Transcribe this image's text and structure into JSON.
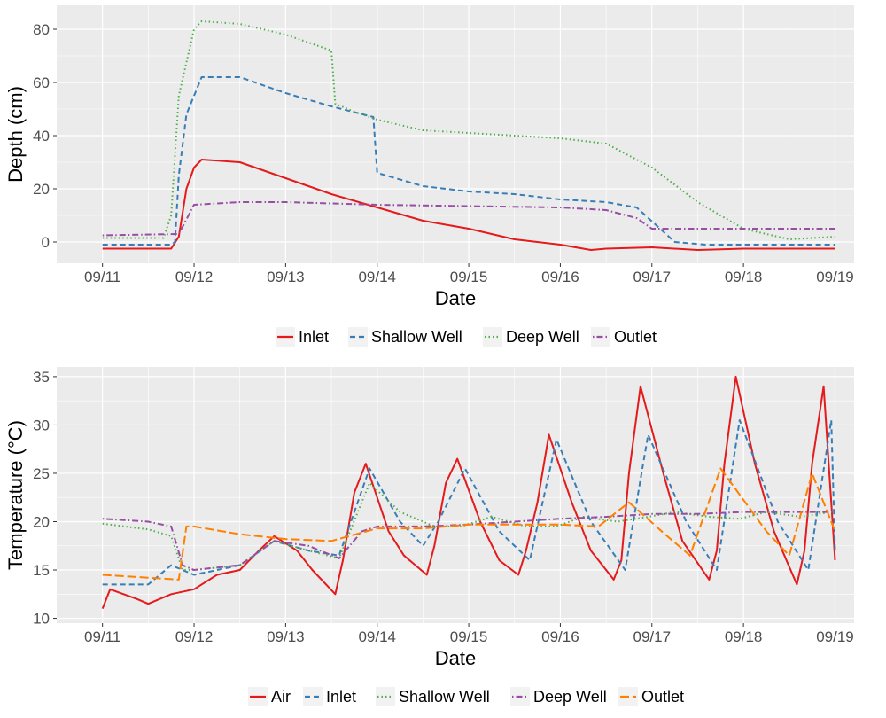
{
  "chart_data": [
    {
      "type": "line",
      "title": "",
      "xlabel": "Date",
      "ylabel": "Depth (cm)",
      "x_tick_labels": [
        "09/11",
        "09/12",
        "09/13",
        "09/14",
        "09/15",
        "09/16",
        "09/17",
        "09/18",
        "09/19"
      ],
      "y_ticks": [
        0,
        20,
        40,
        60,
        80
      ],
      "ylim": [
        -8,
        89
      ],
      "xlim": [
        "09/10 12:00",
        "09/19 05:00"
      ],
      "grid": true,
      "legend_position": "bottom",
      "series": [
        {
          "name": "Inlet",
          "color": "#e41a1c",
          "dash": "solid",
          "x": [
            "09/11 00:00",
            "09/11 18:00",
            "09/11 20:00",
            "09/11 22:00",
            "09/12 00:00",
            "09/12 02:00",
            "09/12 12:00",
            "09/13 00:00",
            "09/13 12:00",
            "09/14 00:00",
            "09/14 12:00",
            "09/15 00:00",
            "09/15 12:00",
            "09/16 00:00",
            "09/16 08:00",
            "09/16 12:00",
            "09/17 00:00",
            "09/17 12:00",
            "09/18 00:00",
            "09/18 12:00",
            "09/19 00:00"
          ],
          "y": [
            -2.5,
            -2.5,
            2,
            20,
            28,
            31,
            30,
            24,
            18,
            13,
            8,
            5,
            1,
            -1,
            -3,
            -2.5,
            -2,
            -3,
            -2.5,
            -2.5,
            -2.5
          ]
        },
        {
          "name": "Shallow Well",
          "color": "#377eb8",
          "dash": "dashed",
          "x": [
            "09/11 00:00",
            "09/11 18:00",
            "09/11 19:00",
            "09/11 20:00",
            "09/11 22:00",
            "09/12 02:00",
            "09/12 12:00",
            "09/13 00:00",
            "09/13 12:00",
            "09/13 23:00",
            "09/14 00:00",
            "09/14 12:00",
            "09/15 00:00",
            "09/15 12:00",
            "09/16 00:00",
            "09/16 12:00",
            "09/16 20:00",
            "09/17 06:00",
            "09/17 14:00",
            "09/18 00:00",
            "09/18 12:00",
            "09/19 00:00"
          ],
          "y": [
            -1,
            -1,
            0,
            25,
            48,
            62,
            62,
            56,
            51,
            47,
            26,
            21,
            19,
            18,
            16,
            15,
            13,
            0,
            -1,
            -1,
            -1,
            -1
          ]
        },
        {
          "name": "Deep Well",
          "color": "#4daf4a",
          "dash": "dotted",
          "x": [
            "09/11 00:00",
            "09/11 16:00",
            "09/11 18:00",
            "09/11 20:00",
            "09/12 00:00",
            "09/12 02:00",
            "09/12 12:00",
            "09/13 00:00",
            "09/13 12:00",
            "09/13 13:00",
            "09/13 18:00",
            "09/14 00:00",
            "09/14 12:00",
            "09/15 00:00",
            "09/15 12:00",
            "09/16 00:00",
            "09/16 12:00",
            "09/17 00:00",
            "09/17 12:00",
            "09/18 00:00",
            "09/18 12:00",
            "09/19 00:00"
          ],
          "y": [
            1.5,
            1.5,
            10,
            55,
            80,
            83,
            82,
            78,
            72,
            52,
            49,
            46,
            42,
            41,
            40,
            39,
            37,
            28,
            15,
            5,
            1,
            2
          ]
        },
        {
          "name": "Outlet",
          "color": "#984ea3",
          "dash": "dotdash",
          "x": [
            "09/11 00:00",
            "09/11 20:00",
            "09/12 00:00",
            "09/12 12:00",
            "09/13 00:00",
            "09/13 12:00",
            "09/14 00:00",
            "09/15 00:00",
            "09/16 00:00",
            "09/16 12:00",
            "09/16 20:00",
            "09/17 00:00",
            "09/17 12:00",
            "09/18 00:00",
            "09/18 12:00",
            "09/19 00:00"
          ],
          "y": [
            2.5,
            3,
            14,
            15,
            15,
            14.5,
            14,
            13.5,
            13,
            12,
            9,
            5,
            5,
            5,
            5,
            5
          ]
        }
      ]
    },
    {
      "type": "line",
      "title": "",
      "xlabel": "Date",
      "ylabel": "Temperature (°C)",
      "x_tick_labels": [
        "09/11",
        "09/12",
        "09/13",
        "09/14",
        "09/15",
        "09/16",
        "09/17",
        "09/18",
        "09/19"
      ],
      "y_ticks": [
        10,
        15,
        20,
        25,
        30,
        35
      ],
      "ylim": [
        9.5,
        36
      ],
      "xlim": [
        "09/10 12:00",
        "09/19 05:00"
      ],
      "grid": true,
      "legend_position": "bottom",
      "series": [
        {
          "name": "Air",
          "color": "#e41a1c",
          "dash": "solid",
          "x": [
            "09/11 00:00",
            "09/11 02:00",
            "09/11 09:00",
            "09/11 12:00",
            "09/11 18:00",
            "09/12 00:00",
            "09/12 06:00",
            "09/12 12:00",
            "09/12 17:00",
            "09/12 21:00",
            "09/13 03:00",
            "09/13 07:00",
            "09/13 13:00",
            "09/13 15:00",
            "09/13 18:00",
            "09/13 21:00",
            "09/14 03:00",
            "09/14 07:00",
            "09/14 13:00",
            "09/14 15:00",
            "09/14 18:00",
            "09/14 21:00",
            "09/15 03:00",
            "09/15 08:00",
            "09/15 13:00",
            "09/15 15:00",
            "09/15 18:00",
            "09/15 21:00",
            "09/16 03:00",
            "09/16 08:00",
            "09/16 14:00",
            "09/16 16:00",
            "09/16 18:00",
            "09/16 21:00",
            "09/17 03:00",
            "09/17 08:00",
            "09/17 15:00",
            "09/17 17:00",
            "09/17 19:00",
            "09/17 22:00",
            "09/18 03:00",
            "09/18 08:00",
            "09/18 14:00",
            "09/18 16:00",
            "09/18 18:00",
            "09/18 21:00",
            "09/19 00:00"
          ],
          "y": [
            11,
            13,
            12,
            11.5,
            12.5,
            13,
            14.5,
            15,
            17,
            18.5,
            17,
            15,
            12.5,
            16,
            23,
            26,
            19,
            16.5,
            14.5,
            17.5,
            24,
            26.5,
            20,
            16,
            14.5,
            17,
            22,
            29,
            22,
            17,
            14,
            16,
            25,
            34,
            25,
            18,
            14,
            17,
            26,
            35,
            26,
            19,
            13.5,
            17,
            26,
            34,
            16
          ]
        },
        {
          "name": "Inlet",
          "color": "#377eb8",
          "dash": "dashed",
          "x": [
            "09/11 00:00",
            "09/11 12:00",
            "09/11 18:00",
            "09/12 00:00",
            "09/12 12:00",
            "09/12 21:00",
            "09/13 06:00",
            "09/13 14:00",
            "09/13 22:00",
            "09/14 06:00",
            "09/14 12:00",
            "09/14 16:00",
            "09/14 23:00",
            "09/15 08:00",
            "09/15 16:00",
            "09/15 23:00",
            "09/16 08:00",
            "09/16 17:00",
            "09/16 23:00",
            "09/17 09:00",
            "09/17 17:00",
            "09/17 23:00",
            "09/18 09:00",
            "09/18 17:00",
            "09/18 23:00",
            "09/19 00:00"
          ],
          "y": [
            13.5,
            13.5,
            15.5,
            14.5,
            15.5,
            18,
            17,
            16.5,
            25.5,
            20,
            17.5,
            20,
            25.5,
            19,
            16,
            28.5,
            20,
            15,
            29,
            20,
            15,
            30.5,
            20,
            15,
            30.5,
            17
          ]
        },
        {
          "name": "Shallow Well",
          "color": "#4daf4a",
          "dash": "dotted",
          "x": [
            "09/11 00:00",
            "09/11 12:00",
            "09/11 18:00",
            "09/11 21:00",
            "09/12 00:00",
            "09/12 12:00",
            "09/12 21:00",
            "09/13 06:00",
            "09/13 14:00",
            "09/13 22:00",
            "09/14 06:00",
            "09/14 15:00",
            "09/14 22:00",
            "09/15 06:00",
            "09/15 15:00",
            "09/15 23:00",
            "09/16 06:00",
            "09/16 15:00",
            "09/16 23:00",
            "09/17 06:00",
            "09/17 15:00",
            "09/17 23:00",
            "09/18 06:00",
            "09/18 15:00",
            "09/18 23:00",
            "09/19 00:00"
          ],
          "y": [
            19.8,
            19.2,
            18.5,
            15,
            15,
            15.5,
            18,
            17,
            16.2,
            24,
            21,
            19.5,
            19.5,
            20.5,
            19.5,
            19.5,
            20.5,
            20,
            20.5,
            21,
            20.5,
            20.3,
            21,
            20.5,
            21,
            21
          ]
        },
        {
          "name": "Deep Well",
          "color": "#984ea3",
          "dash": "dotdash",
          "x": [
            "09/11 00:00",
            "09/11 12:00",
            "09/11 18:00",
            "09/11 21:00",
            "09/12 00:00",
            "09/12 12:00",
            "09/12 21:00",
            "09/13 06:00",
            "09/13 14:00",
            "09/13 20:00",
            "09/14 00:00",
            "09/14 12:00",
            "09/15 00:00",
            "09/15 12:00",
            "09/16 00:00",
            "09/16 12:00",
            "09/17 00:00",
            "09/17 12:00",
            "09/18 00:00",
            "09/18 12:00",
            "09/19 00:00"
          ],
          "y": [
            20.3,
            20,
            19.5,
            15.5,
            15,
            15.5,
            18,
            17.5,
            16.2,
            19,
            19.5,
            19.5,
            19.7,
            20,
            20.3,
            20.5,
            20.8,
            20.8,
            21,
            21,
            21
          ]
        },
        {
          "name": "Outlet",
          "color": "#ff7f00",
          "dash": "longdash",
          "x": [
            "09/11 00:00",
            "09/11 12:00",
            "09/11 20:00",
            "09/11 22:00",
            "09/12 00:00",
            "09/12 12:00",
            "09/13 00:00",
            "09/13 12:00",
            "09/14 00:00",
            "09/14 12:00",
            "09/15 00:00",
            "09/15 12:00",
            "09/16 00:00",
            "09/16 10:00",
            "09/16 18:00",
            "09/17 04:00",
            "09/17 10:00",
            "09/17 18:00",
            "09/18 06:00",
            "09/18 12:00",
            "09/18 18:00",
            "09/19 00:00"
          ],
          "y": [
            14.5,
            14.2,
            14,
            19.5,
            19.5,
            18.7,
            18.2,
            18,
            19.3,
            19.3,
            19.7,
            19.7,
            19.7,
            19.5,
            22,
            18.5,
            16.5,
            25.5,
            19,
            16.5,
            25,
            19
          ]
        }
      ]
    }
  ]
}
